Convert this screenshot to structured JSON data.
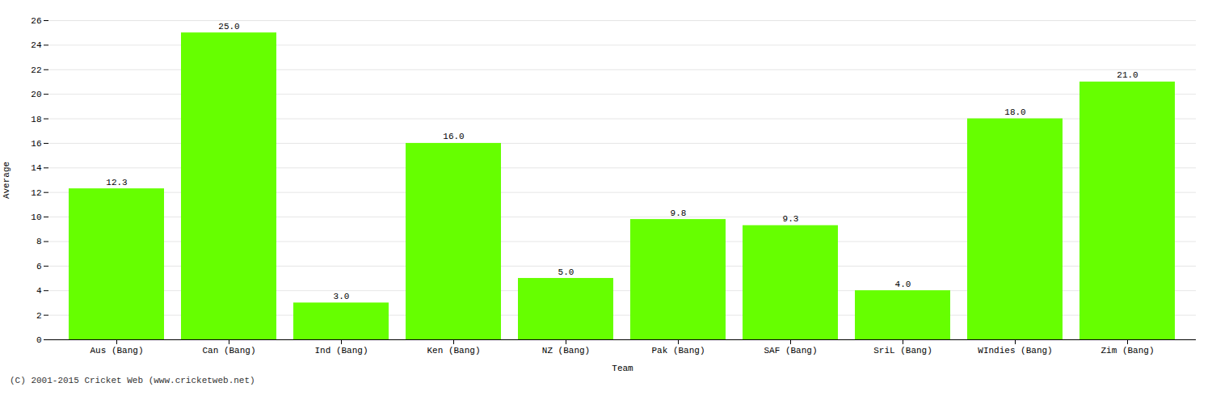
{
  "chart_data": {
    "type": "bar",
    "categories": [
      "Aus (Bang)",
      "Can (Bang)",
      "Ind (Bang)",
      "Ken (Bang)",
      "NZ (Bang)",
      "Pak (Bang)",
      "SAF (Bang)",
      "SriL (Bang)",
      "WIndies (Bang)",
      "Zim (Bang)"
    ],
    "values": [
      12.3,
      25.0,
      3.0,
      16.0,
      5.0,
      9.8,
      9.3,
      4.0,
      18.0,
      21.0
    ],
    "value_labels": [
      "12.3",
      "25.0",
      "3.0",
      "16.0",
      "5.0",
      "9.8",
      "9.3",
      "4.0",
      "18.0",
      "21.0"
    ],
    "data_labels": true,
    "color": "#66ff00",
    "xlabel": "Team",
    "ylabel": "Average",
    "ylim": [
      0,
      26
    ],
    "yticks": [
      0,
      2,
      4,
      6,
      8,
      10,
      12,
      14,
      16,
      18,
      20,
      22,
      24,
      26
    ],
    "grid": true,
    "caption": "(C) 2001-2015 Cricket Web (www.cricketweb.net)"
  }
}
